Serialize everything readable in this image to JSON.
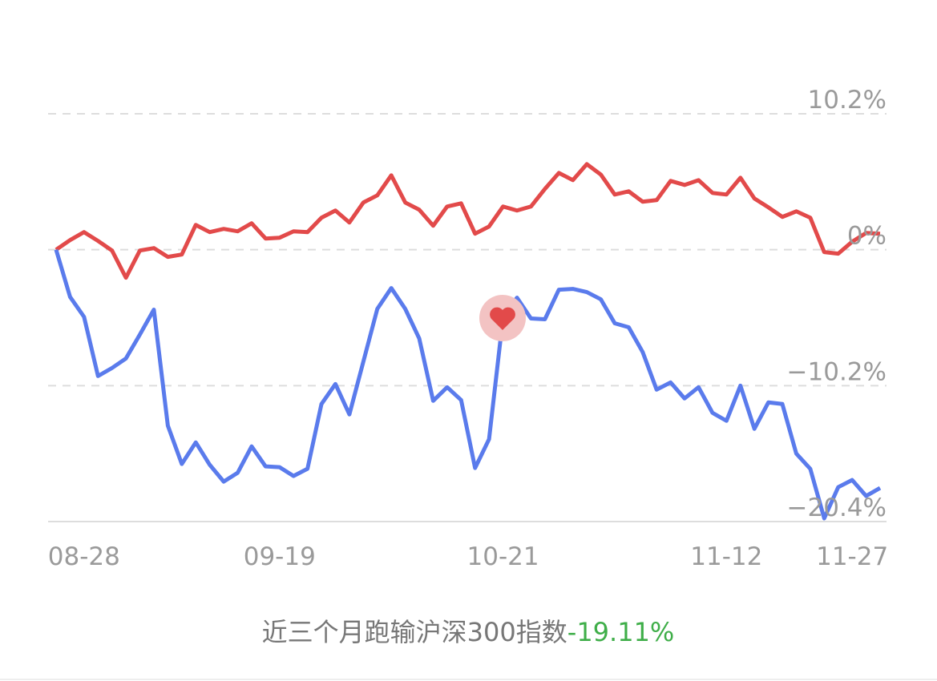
{
  "chart_data": {
    "type": "line",
    "categories": [
      null,
      null,
      "08-28",
      null,
      null,
      null,
      null,
      null,
      null,
      null,
      null,
      null,
      null,
      null,
      null,
      null,
      "09-19",
      null,
      null,
      null,
      null,
      null,
      null,
      null,
      null,
      null,
      null,
      null,
      null,
      null,
      null,
      null,
      "10-21",
      null,
      null,
      null,
      null,
      null,
      null,
      null,
      null,
      null,
      null,
      null,
      null,
      null,
      null,
      null,
      "11-12",
      null,
      null,
      null,
      null,
      null,
      null,
      null,
      null,
      "11-27",
      null,
      null
    ],
    "series": [
      {
        "color": "#e24a4a",
        "values": [
          0,
          0.72,
          1.32,
          0.66,
          -0.06,
          -2.1,
          -0.06,
          0.12,
          -0.54,
          -0.36,
          1.86,
          1.32,
          1.56,
          1.38,
          1.98,
          0.84,
          0.9,
          1.38,
          1.32,
          2.4,
          2.94,
          2.04,
          3.54,
          4.08,
          5.58,
          3.54,
          3.0,
          1.8,
          3.24,
          3.48,
          1.2,
          1.74,
          3.24,
          2.94,
          3.24,
          4.56,
          5.76,
          5.22,
          6.42,
          5.64,
          4.14,
          4.38,
          3.6,
          3.72,
          5.16,
          4.86,
          5.22,
          4.26,
          4.14,
          5.4,
          3.84,
          3.18,
          2.46,
          2.88,
          2.4,
          -0.18,
          -0.3,
          0.6,
          1.26,
          1.2
        ]
      },
      {
        "color": "#5a7bec",
        "values": [
          0,
          -3.54,
          -5.04,
          -9.48,
          -8.88,
          -8.16,
          -6.36,
          -4.5,
          -13.2,
          -16.08,
          -14.46,
          -16.14,
          -17.4,
          -16.74,
          -14.76,
          -16.26,
          -16.32,
          -16.98,
          -16.44,
          -11.58,
          -10.08,
          -12.36,
          -8.4,
          -4.44,
          -2.88,
          -4.44,
          -6.66,
          -11.34,
          -10.32,
          -11.28,
          -16.38,
          -14.22,
          -5.1,
          -3.6,
          -5.16,
          -5.22,
          -3.0,
          -2.94,
          -3.18,
          -3.72,
          -5.52,
          -5.82,
          -7.68,
          -10.5,
          -9.96,
          -11.16,
          -10.32,
          -12.24,
          -12.84,
          -10.2,
          -13.44,
          -11.46,
          -11.58,
          -15.3,
          -16.44,
          -20.16,
          -17.82,
          -17.28,
          -18.48,
          -17.88
        ]
      }
    ],
    "ylim": [
      -20.4,
      10.2
    ],
    "yticks": [
      {
        "value": 10.2,
        "label": "10.2%"
      },
      {
        "value": 0,
        "label": "0%"
      },
      {
        "value": -10.2,
        "label": "−10.2%"
      },
      {
        "value": -20.4,
        "label": "−20.4%"
      }
    ],
    "grid": true,
    "caption": {
      "text": "近三个月跑输沪深300指数",
      "value": -19.11,
      "value_label": "-19.11%",
      "value_color": "#3fae49"
    }
  }
}
